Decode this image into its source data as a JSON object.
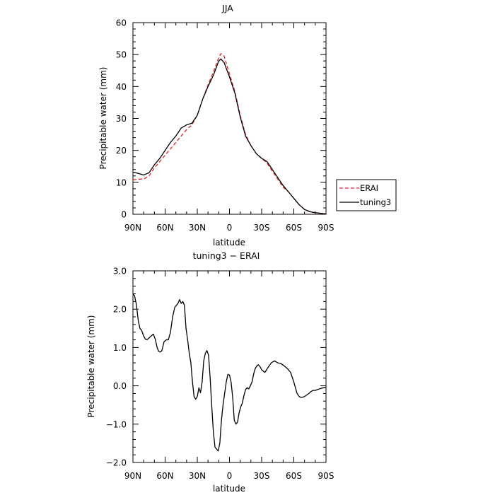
{
  "chart_data": [
    {
      "type": "line",
      "title": "JJA",
      "xlabel": "latitude",
      "ylabel": "Precipitable water (mm)",
      "xlim": [
        90,
        -90
      ],
      "ylim": [
        0,
        60
      ],
      "x_ticks": [
        90,
        60,
        30,
        0,
        -30,
        -60,
        -90
      ],
      "x_tick_labels": [
        "90N",
        "60N",
        "30N",
        "0",
        "30S",
        "60S",
        "90S"
      ],
      "y_ticks": [
        0,
        10,
        20,
        30,
        40,
        50,
        60
      ],
      "y_tick_labels": [
        "0",
        "10",
        "20",
        "30",
        "40",
        "50",
        "60"
      ],
      "legend": {
        "placement": "outside-right",
        "entries": [
          "ERAI",
          "tuning3"
        ]
      },
      "series": [
        {
          "name": "ERAI",
          "color": "#e8202a",
          "dash": "dashed",
          "x": [
            90,
            85,
            80,
            75,
            70,
            65,
            60,
            55,
            50,
            45,
            40,
            35,
            30,
            25,
            20,
            15,
            10,
            8,
            5,
            0,
            -5,
            -10,
            -15,
            -20,
            -25,
            -30,
            -35,
            -40,
            -45,
            -50,
            -55,
            -60,
            -65,
            -70,
            -75,
            -80,
            -85,
            -90
          ],
          "y": [
            10.8,
            11.0,
            11.0,
            12.0,
            14.5,
            16.5,
            18.5,
            20.5,
            22.5,
            24.5,
            26.5,
            28.0,
            31.0,
            36.0,
            40.5,
            44.5,
            49.0,
            50.3,
            49.5,
            44.0,
            38.5,
            31.0,
            25.0,
            21.5,
            19.0,
            17.5,
            16.0,
            13.5,
            11.0,
            8.5,
            7.0,
            5.0,
            3.0,
            1.5,
            0.8,
            0.5,
            0.3,
            0.1
          ]
        },
        {
          "name": "tuning3",
          "color": "#000000",
          "dash": "solid",
          "x": [
            90,
            85,
            80,
            75,
            70,
            65,
            60,
            55,
            50,
            45,
            40,
            35,
            30,
            25,
            20,
            15,
            10,
            8,
            5,
            0,
            -5,
            -10,
            -15,
            -20,
            -25,
            -30,
            -35,
            -40,
            -45,
            -50,
            -55,
            -60,
            -65,
            -70,
            -75,
            -80,
            -85,
            -90
          ],
          "y": [
            13.2,
            12.8,
            12.3,
            13.0,
            15.5,
            17.5,
            20.0,
            22.5,
            24.5,
            27.0,
            28.0,
            28.5,
            31.0,
            36.0,
            40.0,
            43.5,
            48.0,
            48.6,
            47.5,
            43.0,
            38.0,
            30.5,
            24.5,
            21.5,
            19.0,
            17.5,
            16.5,
            14.0,
            11.5,
            9.0,
            7.0,
            5.0,
            3.0,
            1.5,
            0.8,
            0.5,
            0.3,
            0.1
          ]
        }
      ]
    },
    {
      "type": "line",
      "title": "tuning3 − ERAI",
      "xlabel": "latitude",
      "ylabel": "Precipitable water (mm)",
      "xlim": [
        90,
        -90
      ],
      "ylim": [
        -2.0,
        3.0
      ],
      "x_ticks": [
        90,
        60,
        30,
        0,
        -30,
        -60,
        -90
      ],
      "x_tick_labels": [
        "90N",
        "60N",
        "30N",
        "0",
        "30S",
        "60S",
        "90S"
      ],
      "y_ticks": [
        -2,
        -1,
        0,
        1,
        2,
        3
      ],
      "y_tick_labels": [
        "−2.0",
        "−1.0",
        "0.0",
        "1.0",
        "2.0",
        "3.0"
      ],
      "series": [
        {
          "color": "#000000",
          "dash": "solid",
          "x": [
            90,
            88.5,
            87,
            85,
            83.5,
            82,
            80,
            78.5,
            77,
            75,
            73,
            71,
            69,
            67.5,
            66,
            64.5,
            63,
            61,
            59,
            57,
            55,
            53,
            51,
            49.5,
            48,
            46.5,
            45,
            43.5,
            42,
            40.5,
            39,
            37.5,
            36,
            34.5,
            33,
            31.5,
            30,
            28.5,
            27,
            25.5,
            24,
            22.5,
            21,
            19.5,
            18,
            16.5,
            15,
            13.5,
            12,
            10.5,
            9,
            7.5,
            6,
            4.5,
            3,
            1.5,
            0,
            -1.5,
            -3,
            -4.5,
            -6,
            -7.5,
            -9,
            -10.5,
            -12,
            -13.5,
            -15,
            -16.5,
            -18,
            -19.5,
            -21,
            -22.5,
            -24,
            -25.5,
            -27,
            -28.5,
            -30,
            -33,
            -36,
            -39,
            -42,
            -45,
            -48,
            -51,
            -54,
            -57,
            -60,
            -63,
            -65,
            -66.5,
            -68,
            -70,
            -72,
            -74,
            -76,
            -78,
            -80,
            -82,
            -84,
            -86,
            -88,
            -90
          ],
          "y": [
            2.4,
            2.35,
            2.15,
            1.7,
            1.5,
            1.45,
            1.3,
            1.22,
            1.2,
            1.25,
            1.3,
            1.35,
            1.2,
            1.0,
            0.9,
            0.88,
            0.92,
            1.15,
            1.2,
            1.2,
            1.4,
            1.8,
            2.05,
            2.1,
            2.15,
            2.25,
            2.15,
            2.2,
            2.1,
            1.5,
            1.2,
            0.85,
            0.6,
            0.1,
            -0.28,
            -0.35,
            -0.28,
            -0.05,
            -0.18,
            0.1,
            0.65,
            0.85,
            0.92,
            0.8,
            0.2,
            -0.55,
            -1.2,
            -1.6,
            -1.65,
            -1.7,
            -1.5,
            -0.9,
            -0.5,
            -0.2,
            0.1,
            0.3,
            0.28,
            0.1,
            -0.3,
            -0.9,
            -1.0,
            -0.95,
            -0.7,
            -0.55,
            -0.45,
            -0.25,
            -0.1,
            -0.05,
            -0.08,
            0.0,
            0.1,
            0.3,
            0.45,
            0.52,
            0.55,
            0.5,
            0.42,
            0.35,
            0.48,
            0.6,
            0.65,
            0.6,
            0.58,
            0.52,
            0.45,
            0.35,
            0.1,
            -0.2,
            -0.28,
            -0.3,
            -0.3,
            -0.28,
            -0.24,
            -0.2,
            -0.15,
            -0.12,
            -0.12,
            -0.1,
            -0.08,
            -0.06,
            -0.05,
            -0.05
          ]
        }
      ]
    }
  ]
}
